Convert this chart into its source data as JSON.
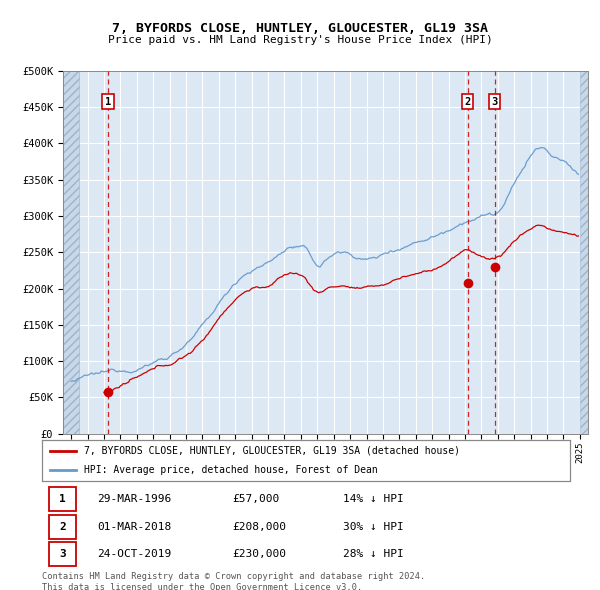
{
  "title": "7, BYFORDS CLOSE, HUNTLEY, GLOUCESTER, GL19 3SA",
  "subtitle": "Price paid vs. HM Land Registry's House Price Index (HPI)",
  "xlim": [
    1993.5,
    2025.5
  ],
  "ylim": [
    0,
    500000
  ],
  "yticks": [
    0,
    50000,
    100000,
    150000,
    200000,
    250000,
    300000,
    350000,
    400000,
    450000,
    500000
  ],
  "ytick_labels": [
    "£0",
    "£50K",
    "£100K",
    "£150K",
    "£200K",
    "£250K",
    "£300K",
    "£350K",
    "£400K",
    "£450K",
    "£500K"
  ],
  "bg_color": "#dce9f5",
  "grid_color": "#ffffff",
  "sales": [
    {
      "date": "29-MAR-1996",
      "year": 1996.24,
      "price": 57000,
      "label": "1",
      "desc": "14% ↓ HPI"
    },
    {
      "date": "01-MAR-2018",
      "year": 2018.17,
      "price": 208000,
      "label": "2",
      "desc": "30% ↓ HPI"
    },
    {
      "date": "24-OCT-2019",
      "year": 2019.81,
      "price": 230000,
      "label": "3",
      "desc": "28% ↓ HPI"
    }
  ],
  "legend_property": "7, BYFORDS CLOSE, HUNTLEY, GLOUCESTER, GL19 3SA (detached house)",
  "legend_hpi": "HPI: Average price, detached house, Forest of Dean",
  "footer": "Contains HM Land Registry data © Crown copyright and database right 2024.\nThis data is licensed under the Open Government Licence v3.0.",
  "property_color": "#cc0000",
  "hpi_color": "#6699cc",
  "dot_color": "#cc0000",
  "vline_color": "#cc0000",
  "box_edge_color": "#cc0000",
  "data_start_year": 1994.5,
  "data_end_year": 2025.0,
  "hpi_base_points": [
    [
      1994,
      72000
    ],
    [
      1994.5,
      74000
    ],
    [
      1995,
      76000
    ],
    [
      1995.5,
      77500
    ],
    [
      1996,
      78000
    ],
    [
      1996.5,
      80000
    ],
    [
      1997,
      83000
    ],
    [
      1997.5,
      86000
    ],
    [
      1998,
      90000
    ],
    [
      1998.5,
      94000
    ],
    [
      1999,
      99000
    ],
    [
      1999.5,
      104000
    ],
    [
      2000,
      110000
    ],
    [
      2000.5,
      118000
    ],
    [
      2001,
      127000
    ],
    [
      2001.5,
      136000
    ],
    [
      2002,
      148000
    ],
    [
      2002.5,
      162000
    ],
    [
      2003,
      178000
    ],
    [
      2003.5,
      192000
    ],
    [
      2004,
      208000
    ],
    [
      2004.5,
      220000
    ],
    [
      2005,
      228000
    ],
    [
      2005.5,
      232000
    ],
    [
      2006,
      238000
    ],
    [
      2006.5,
      245000
    ],
    [
      2007,
      255000
    ],
    [
      2007.5,
      260000
    ],
    [
      2008,
      258000
    ],
    [
      2008.5,
      248000
    ],
    [
      2009,
      232000
    ],
    [
      2009.5,
      238000
    ],
    [
      2010,
      248000
    ],
    [
      2010.5,
      250000
    ],
    [
      2011,
      248000
    ],
    [
      2011.5,
      245000
    ],
    [
      2012,
      242000
    ],
    [
      2012.5,
      244000
    ],
    [
      2013,
      248000
    ],
    [
      2013.5,
      255000
    ],
    [
      2014,
      260000
    ],
    [
      2014.5,
      265000
    ],
    [
      2015,
      270000
    ],
    [
      2015.5,
      275000
    ],
    [
      2016,
      280000
    ],
    [
      2016.5,
      285000
    ],
    [
      2017,
      292000
    ],
    [
      2017.5,
      300000
    ],
    [
      2018,
      308000
    ],
    [
      2018.5,
      312000
    ],
    [
      2019,
      315000
    ],
    [
      2019.5,
      318000
    ],
    [
      2020,
      320000
    ],
    [
      2020.5,
      335000
    ],
    [
      2021,
      355000
    ],
    [
      2021.5,
      375000
    ],
    [
      2022,
      395000
    ],
    [
      2022.5,
      405000
    ],
    [
      2023,
      400000
    ],
    [
      2023.5,
      390000
    ],
    [
      2024,
      385000
    ],
    [
      2024.5,
      375000
    ],
    [
      2025,
      370000
    ]
  ],
  "prop_base_points": [
    [
      1996,
      57000
    ],
    [
      1996.5,
      60000
    ],
    [
      1997,
      65000
    ],
    [
      1997.5,
      70000
    ],
    [
      1998,
      74000
    ],
    [
      1998.5,
      78000
    ],
    [
      1999,
      82000
    ],
    [
      1999.5,
      86000
    ],
    [
      2000,
      90000
    ],
    [
      2000.5,
      96000
    ],
    [
      2001,
      103000
    ],
    [
      2001.5,
      112000
    ],
    [
      2002,
      122000
    ],
    [
      2002.5,
      138000
    ],
    [
      2003,
      155000
    ],
    [
      2003.5,
      170000
    ],
    [
      2004,
      182000
    ],
    [
      2004.5,
      192000
    ],
    [
      2005,
      198000
    ],
    [
      2005.5,
      200000
    ],
    [
      2006,
      202000
    ],
    [
      2006.5,
      207000
    ],
    [
      2007,
      215000
    ],
    [
      2007.5,
      218000
    ],
    [
      2008,
      215000
    ],
    [
      2008.5,
      205000
    ],
    [
      2009,
      192000
    ],
    [
      2009.5,
      196000
    ],
    [
      2010,
      200000
    ],
    [
      2010.5,
      202000
    ],
    [
      2011,
      200000
    ],
    [
      2011.5,
      198000
    ],
    [
      2012,
      196000
    ],
    [
      2012.5,
      198000
    ],
    [
      2013,
      200000
    ],
    [
      2013.5,
      205000
    ],
    [
      2014,
      210000
    ],
    [
      2014.5,
      213000
    ],
    [
      2015,
      216000
    ],
    [
      2015.5,
      219000
    ],
    [
      2016,
      222000
    ],
    [
      2016.5,
      228000
    ],
    [
      2017,
      235000
    ],
    [
      2017.5,
      242000
    ],
    [
      2018,
      248000
    ],
    [
      2018.5,
      245000
    ],
    [
      2019,
      242000
    ],
    [
      2019.5,
      238000
    ],
    [
      2020,
      240000
    ],
    [
      2020.5,
      250000
    ],
    [
      2021,
      262000
    ],
    [
      2021.5,
      272000
    ],
    [
      2022,
      280000
    ],
    [
      2022.5,
      285000
    ],
    [
      2023,
      282000
    ],
    [
      2023.5,
      278000
    ],
    [
      2024,
      275000
    ],
    [
      2024.5,
      272000
    ],
    [
      2025,
      270000
    ]
  ]
}
